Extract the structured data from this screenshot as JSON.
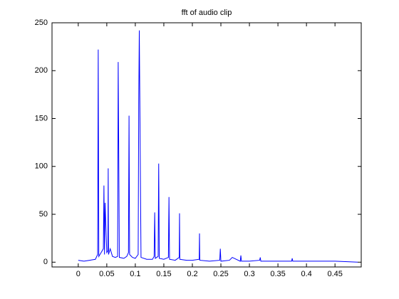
{
  "chart_data": {
    "type": "line",
    "title": "fft of audio clip",
    "x": [
      0,
      0.01,
      0.02,
      0.03,
      0.034,
      0.035,
      0.036,
      0.04,
      0.044,
      0.045,
      0.046,
      0.047,
      0.05,
      0.052,
      0.0525,
      0.053,
      0.056,
      0.06,
      0.065,
      0.069,
      0.07,
      0.071,
      0.072,
      0.08,
      0.085,
      0.088,
      0.089,
      0.09,
      0.095,
      0.1,
      0.105,
      0.106,
      0.107,
      0.11,
      0.12,
      0.125,
      0.13,
      0.133,
      0.134,
      0.135,
      0.14,
      0.141,
      0.142,
      0.15,
      0.158,
      0.159,
      0.16,
      0.17,
      0.177,
      0.1775,
      0.178,
      0.19,
      0.2,
      0.212,
      0.2125,
      0.213,
      0.23,
      0.248,
      0.249,
      0.25,
      0.265,
      0.27,
      0.284,
      0.285,
      0.286,
      0.3,
      0.318,
      0.319,
      0.32,
      0.35,
      0.374,
      0.375,
      0.376,
      0.4,
      0.45,
      0.49
    ],
    "series": [
      {
        "color": "#0000ff",
        "values": [
          2,
          1,
          2,
          3,
          8,
          222,
          6,
          10,
          14,
          80,
          8,
          62,
          10,
          12,
          98,
          8,
          14,
          6,
          5,
          6,
          209,
          111,
          5,
          4,
          6,
          10,
          153,
          8,
          5,
          4,
          8,
          166,
          242,
          5,
          3,
          3,
          3,
          6,
          52,
          4,
          6,
          103,
          4,
          3,
          5,
          68,
          3,
          2,
          5,
          51,
          3,
          2,
          2,
          3,
          30,
          2,
          1,
          2,
          14,
          1,
          2,
          5,
          1,
          7,
          1,
          1,
          2,
          5,
          1,
          1,
          1,
          4,
          1,
          1,
          1,
          0
        ]
      }
    ],
    "xlim": [
      -0.046,
      0.496
    ],
    "ylim": [
      -5,
      250
    ],
    "xticks": [
      0,
      0.05,
      0.1,
      0.15,
      0.2,
      0.25,
      0.3,
      0.35,
      0.4,
      0.45
    ],
    "yticks": [
      0,
      50,
      100,
      150,
      200,
      250
    ]
  }
}
